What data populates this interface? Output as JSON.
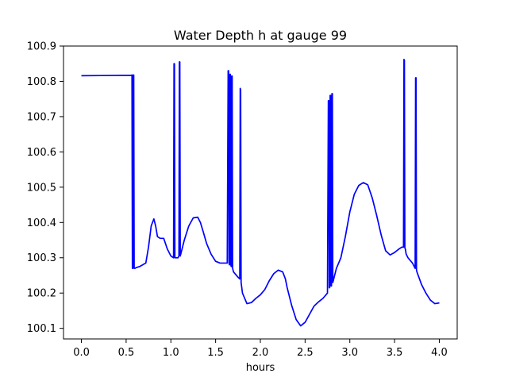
{
  "chart_data": {
    "type": "line",
    "title": "Water Depth h at gauge 99",
    "xlabel": "hours",
    "ylabel": "",
    "xlim": [
      -0.2,
      4.2
    ],
    "ylim": [
      100.07,
      100.9
    ],
    "xticks": [
      0.0,
      0.5,
      1.0,
      1.5,
      2.0,
      2.5,
      3.0,
      3.5,
      4.0
    ],
    "xtick_labels": [
      "0.0",
      "0.5",
      "1.0",
      "1.5",
      "2.0",
      "2.5",
      "3.0",
      "3.5",
      "4.0"
    ],
    "yticks": [
      100.1,
      100.2,
      100.3,
      100.4,
      100.5,
      100.6,
      100.7,
      100.8,
      100.9
    ],
    "ytick_labels": [
      "100.1",
      "100.2",
      "100.3",
      "100.4",
      "100.5",
      "100.6",
      "100.7",
      "100.8",
      "100.9"
    ],
    "grid": false,
    "legend": "none",
    "colors": {
      "line": "#0000ff",
      "axes": "#000000",
      "background": "#ffffff"
    },
    "series": [
      {
        "x": [
          0.0,
          0.56,
          0.565,
          0.57,
          0.575,
          0.58,
          0.585,
          0.59,
          0.6,
          0.61,
          0.65,
          0.72,
          0.75,
          0.78,
          0.81,
          0.83,
          0.85,
          0.88,
          0.92,
          0.96,
          1.0,
          1.03,
          1.035,
          1.04,
          1.045,
          1.06,
          1.08,
          1.09,
          1.095,
          1.1,
          1.105,
          1.12,
          1.15,
          1.2,
          1.25,
          1.3,
          1.33,
          1.36,
          1.4,
          1.45,
          1.5,
          1.55,
          1.6,
          1.63,
          1.64,
          1.645,
          1.65,
          1.655,
          1.66,
          1.665,
          1.67,
          1.675,
          1.68,
          1.685,
          1.69,
          1.7,
          1.75,
          1.77,
          1.775,
          1.78,
          1.785,
          1.79,
          1.8,
          1.85,
          1.9,
          1.95,
          2.0,
          2.05,
          2.1,
          2.15,
          2.2,
          2.25,
          2.28,
          2.3,
          2.35,
          2.4,
          2.45,
          2.5,
          2.55,
          2.6,
          2.65,
          2.7,
          2.75,
          2.76,
          2.765,
          2.77,
          2.775,
          2.78,
          2.785,
          2.79,
          2.795,
          2.8,
          2.805,
          2.81,
          2.82,
          2.85,
          2.9,
          2.95,
          3.0,
          3.05,
          3.1,
          3.15,
          3.2,
          3.25,
          3.3,
          3.35,
          3.4,
          3.45,
          3.5,
          3.55,
          3.58,
          3.6,
          3.605,
          3.61,
          3.615,
          3.62,
          3.63,
          3.65,
          3.7,
          3.73,
          3.735,
          3.74,
          3.745,
          3.75,
          3.8,
          3.85,
          3.9,
          3.95,
          4.0
        ],
        "y": [
          100.816,
          100.817,
          100.818,
          100.27,
          100.27,
          100.818,
          100.818,
          100.27,
          100.27,
          100.272,
          100.275,
          100.285,
          100.33,
          100.39,
          100.41,
          100.39,
          100.36,
          100.355,
          100.355,
          100.325,
          100.305,
          100.3,
          100.85,
          100.85,
          100.3,
          100.3,
          100.3,
          100.305,
          100.855,
          100.855,
          100.305,
          100.32,
          100.35,
          100.39,
          100.413,
          100.415,
          100.4,
          100.375,
          100.34,
          100.31,
          100.29,
          100.285,
          100.285,
          100.285,
          100.83,
          100.83,
          100.285,
          100.28,
          100.82,
          100.82,
          100.28,
          100.275,
          100.815,
          100.815,
          100.27,
          100.26,
          100.245,
          100.24,
          100.78,
          100.775,
          100.23,
          100.22,
          100.2,
          100.17,
          100.173,
          100.185,
          100.195,
          100.21,
          100.235,
          100.255,
          100.265,
          100.26,
          100.24,
          100.215,
          100.165,
          100.125,
          100.107,
          100.117,
          100.14,
          100.163,
          100.175,
          100.185,
          100.2,
          100.745,
          100.745,
          100.215,
          100.215,
          100.76,
          100.76,
          100.22,
          100.22,
          100.765,
          100.765,
          100.23,
          100.24,
          100.27,
          100.3,
          100.36,
          100.43,
          100.48,
          100.505,
          100.513,
          100.507,
          100.47,
          100.42,
          100.365,
          100.32,
          100.308,
          100.315,
          100.325,
          100.33,
          100.33,
          100.862,
          100.86,
          100.328,
          100.325,
          100.31,
          100.3,
          100.285,
          100.27,
          100.81,
          100.81,
          100.265,
          100.26,
          100.225,
          100.2,
          100.18,
          100.17,
          100.172
        ]
      }
    ]
  }
}
